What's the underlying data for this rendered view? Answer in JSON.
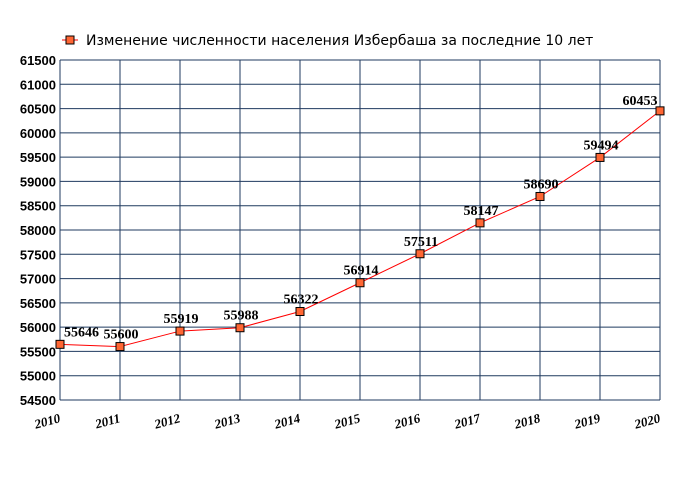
{
  "chart_data": {
    "type": "line",
    "title": "",
    "xlabel": "",
    "ylabel": "",
    "legend": {
      "placement": "top-left",
      "entries": [
        "Изменение численности населения Избербаша за последние 10 лет"
      ]
    },
    "grid": true,
    "ylim": [
      54500,
      61500
    ],
    "yticks": [
      54500,
      55000,
      55500,
      56000,
      56500,
      57000,
      57500,
      58000,
      58500,
      59000,
      59500,
      60000,
      60500,
      61000,
      61500
    ],
    "x": [
      "2010",
      "2011",
      "2012",
      "2013",
      "2014",
      "2015",
      "2016",
      "2017",
      "2018",
      "2019",
      "2020"
    ],
    "series": [
      {
        "name": "Изменение численности населения Избербаша за последние 10 лет",
        "values": [
          55646,
          55600,
          55919,
          55988,
          56322,
          56914,
          57511,
          58147,
          58690,
          59494,
          60453
        ],
        "data_labels": [
          "55646",
          "55600",
          "55919",
          "55988",
          "56322",
          "56914",
          "57511",
          "58147",
          "58690",
          "59494",
          "60453"
        ]
      }
    ],
    "colors": {
      "line": "#ff0000",
      "marker_fill": "#ff6633",
      "marker_stroke": "#000000",
      "grid": "#1f3a5f"
    }
  }
}
